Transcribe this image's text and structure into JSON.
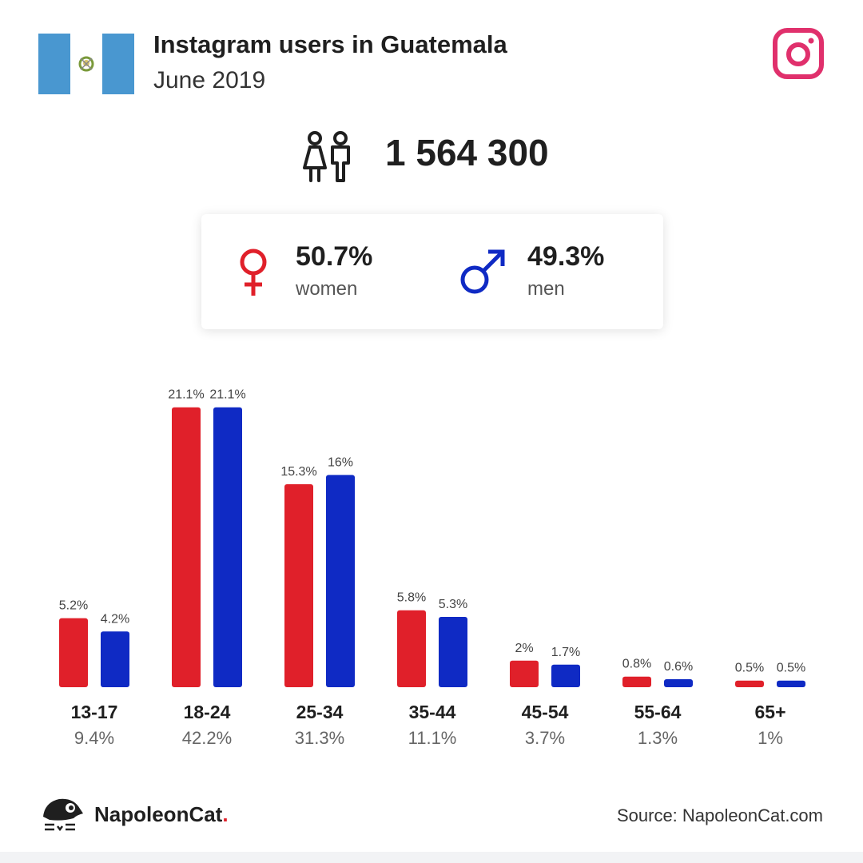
{
  "header": {
    "title": "Instagram users in Guatemala",
    "subtitle": "June 2019"
  },
  "icons": {
    "flag": "guatemala-flag-icon",
    "platform": "instagram-icon",
    "users": "users-icon",
    "female": "female-symbol-icon",
    "male": "male-symbol-icon",
    "logo": "napoleoncat-logo-icon"
  },
  "colors": {
    "women": "#e0202a",
    "men": "#0f2ac4",
    "instagram": "#e0306c",
    "flag_blue": "#4997d0"
  },
  "total_users": "1 564 300",
  "gender": {
    "women_pct": "50.7%",
    "women_label": "women",
    "men_pct": "49.3%",
    "men_label": "men"
  },
  "chart_data": {
    "type": "bar",
    "categories": [
      "13-17",
      "18-24",
      "25-34",
      "35-44",
      "45-54",
      "55-64",
      "65+"
    ],
    "category_totals": [
      "9.4%",
      "42.2%",
      "31.3%",
      "11.1%",
      "3.7%",
      "1.3%",
      "1%"
    ],
    "series": [
      {
        "values": [
          5.2,
          21.1,
          15.3,
          5.8,
          2,
          0.8,
          0.5
        ],
        "labels": [
          "5.2%",
          "21.1%",
          "15.3%",
          "5.8%",
          "2%",
          "0.8%",
          "0.5%"
        ],
        "color": "#e0202a"
      },
      {
        "values": [
          4.2,
          21.1,
          16,
          5.3,
          1.7,
          0.6,
          0.5
        ],
        "labels": [
          "4.2%",
          "21.1%",
          "16%",
          "5.3%",
          "1.7%",
          "0.6%",
          "0.5%"
        ],
        "color": "#0f2ac4"
      }
    ],
    "grid": false
  },
  "footer": {
    "brand": "NapoleonCat",
    "brand_dot": ".",
    "source": "Source: NapoleonCat.com"
  }
}
